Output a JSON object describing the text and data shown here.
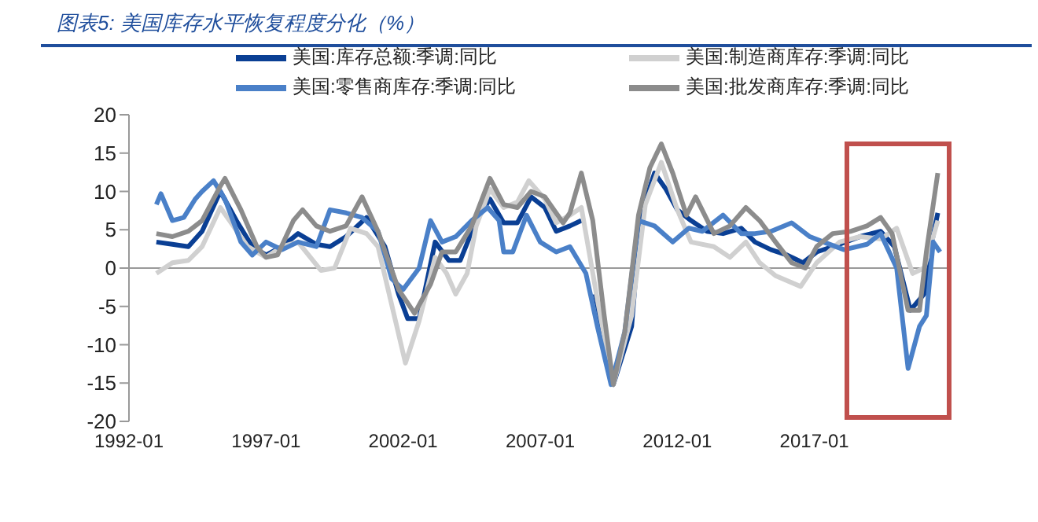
{
  "chart_data": {
    "type": "line",
    "title": "图表5:  美国库存水平恢复程度分化（%）",
    "xlim": [
      "1992-01",
      "2022-01"
    ],
    "xticks": [
      "1992-01",
      "1997-01",
      "2002-01",
      "2007-01",
      "2012-01",
      "2017-01"
    ],
    "ylim": [
      -20,
      20
    ],
    "yticks": [
      -20,
      -15,
      -10,
      -5,
      0,
      5,
      10,
      15,
      20
    ],
    "grid": false,
    "ref_lines": [
      {
        "axis": "y",
        "value": 0,
        "color": "#999999"
      }
    ],
    "legend": "top",
    "marker": "none",
    "line_style": "solid",
    "series": [
      {
        "name": "美国:库存总额:季调:同比",
        "color": "#0a3f94",
        "x": [
          "1993-01",
          "1993-08",
          "1994-03",
          "1994-09",
          "1995-05",
          "1995-12",
          "1996-07",
          "1997-01",
          "1997-08",
          "1998-03",
          "1998-11",
          "1999-05",
          "1999-12",
          "2000-09",
          "2001-05",
          "2001-11",
          "2002-03",
          "2002-08",
          "2003-03",
          "2003-09",
          "2004-02",
          "2004-09",
          "2005-03",
          "2005-09",
          "2006-03",
          "2006-09",
          "2007-03",
          "2007-08",
          "2008-02",
          "2008-07",
          "2008-09",
          "2009-01",
          "2009-09",
          "2010-05",
          "2010-09",
          "2011-03",
          "2011-08",
          "2012-01",
          "2012-07",
          "2013-02",
          "2013-09",
          "2014-05",
          "2014-11",
          "2015-06",
          "2016-01",
          "2016-08",
          "2017-02",
          "2017-12",
          "2018-09",
          "2019-06",
          "2019-12",
          "2020-07",
          "2021-01",
          "2021-03",
          "2021-07"
        ],
        "values": [
          3.4,
          3.1,
          2.8,
          4.8,
          10.0,
          6.2,
          2.8,
          1.7,
          2.8,
          4.5,
          3.1,
          2.8,
          4.1,
          6.6,
          2.8,
          -3.4,
          -6.6,
          -6.6,
          3.4,
          1.0,
          1.0,
          6.2,
          9.0,
          5.9,
          5.9,
          9.3,
          7.9,
          4.8,
          5.5,
          6.2,
          null,
          -3.4,
          -15.2,
          -7.6,
          6.9,
          12.4,
          10.3,
          7.6,
          6.2,
          4.8,
          4.5,
          5.2,
          3.4,
          2.4,
          1.7,
          0.7,
          2.1,
          3.1,
          4.1,
          4.8,
          2.8,
          -5.5,
          -3.4,
          1.4,
          7.2
        ]
      },
      {
        "name": "美国:制造商库存:季调:同比",
        "color": "#d0d0d0",
        "x": [
          "1993-01",
          "1993-08",
          "1994-03",
          "1994-09",
          "1995-05",
          "1995-09",
          "1996-05",
          "1997-01",
          "1997-08",
          "1998-03",
          "1999-01",
          "1999-07",
          "2000-02",
          "2000-09",
          "2001-02",
          "2001-08",
          "2002-02",
          "2002-08",
          "2003-03",
          "2003-08",
          "2003-12",
          "2004-05",
          "2004-09",
          "2005-03",
          "2005-09",
          "2006-03",
          "2006-08",
          "2007-03",
          "2007-08",
          "2008-02",
          "2008-07",
          "2009-02",
          "2009-09",
          "2010-05",
          "2010-11",
          "2011-06",
          "2012-01",
          "2012-07",
          "2013-05",
          "2013-12",
          "2014-07",
          "2015-01",
          "2015-08",
          "2016-07",
          "2017-02",
          "2017-12",
          "2018-09",
          "2019-06",
          "2020-01",
          "2020-08",
          "2021-01",
          "2021-07"
        ],
        "values": [
          -0.7,
          0.7,
          1.0,
          2.8,
          7.9,
          6.2,
          2.8,
          1.4,
          2.8,
          3.4,
          -0.3,
          0,
          5.2,
          4.5,
          2.8,
          -4.8,
          -12.4,
          -6.9,
          1.4,
          -0.7,
          -3.4,
          -0.7,
          5.5,
          10.3,
          7.9,
          8.6,
          11.4,
          9.0,
          5.9,
          6.9,
          7.9,
          -4.1,
          -15.2,
          -6.2,
          8.3,
          13.8,
          7.6,
          3.4,
          2.8,
          1.4,
          3.4,
          0.7,
          -1.0,
          -2.4,
          0.7,
          3.4,
          4.1,
          3.8,
          5.2,
          -0.7,
          0,
          6.2
        ]
      },
      {
        "name": "美国:零售商库存:季调:同比",
        "color": "#4a80c8",
        "x": [
          "1993-01",
          "1993-03",
          "1993-08",
          "1994-01",
          "1994-06",
          "1994-09",
          "1995-02",
          "1995-07",
          "1996-02",
          "1996-07",
          "1997-01",
          "1997-08",
          "1998-03",
          "1998-11",
          "1999-05",
          "1999-12",
          "2000-07",
          "2001-02",
          "2001-08",
          "2002-01",
          "2002-08",
          "2003-01",
          "2003-06",
          "2003-12",
          "2004-07",
          "2005-02",
          "2005-07",
          "2005-09",
          "2006-01",
          "2006-07",
          "2007-01",
          "2007-08",
          "2008-02",
          "2008-09",
          "2009-02",
          "2009-08",
          "2010-02",
          "2010-08",
          "2011-03",
          "2011-11",
          "2012-06",
          "2012-12",
          "2013-09",
          "2014-05",
          "2014-11",
          "2015-06",
          "2016-03",
          "2016-11",
          "2017-05",
          "2018-02",
          "2018-12",
          "2019-06",
          "2020-01",
          "2020-06",
          "2020-11",
          "2021-02",
          "2021-05",
          "2021-08"
        ],
        "values": [
          8.3,
          9.7,
          6.2,
          6.6,
          9.0,
          10.0,
          11.4,
          9.0,
          3.4,
          1.7,
          3.4,
          2.4,
          3.4,
          2.8,
          7.6,
          7.2,
          6.6,
          4.8,
          -1.4,
          -2.8,
          0,
          6.2,
          3.4,
          4.1,
          6.2,
          7.9,
          6.2,
          2.1,
          2.1,
          6.9,
          3.4,
          2.1,
          2.8,
          -0.7,
          -7.6,
          -15.2,
          -8.3,
          6.2,
          5.5,
          3.4,
          5.2,
          4.8,
          6.9,
          4.5,
          4.5,
          4.8,
          5.9,
          4.1,
          3.4,
          2.4,
          3.1,
          4.5,
          0,
          -13.1,
          -7.6,
          -6.2,
          3.4,
          2.1
        ]
      },
      {
        "name": "美国:批发商库存:季调:同比",
        "color": "#8c8c8c",
        "x": [
          "1993-01",
          "1993-08",
          "1994-03",
          "1994-09",
          "1995-05",
          "1995-07",
          "1996-02",
          "1996-09",
          "1997-01",
          "1997-06",
          "1998-01",
          "1998-05",
          "1998-11",
          "1999-05",
          "1999-12",
          "2000-07",
          "2001-02",
          "2001-11",
          "2002-06",
          "2003-01",
          "2003-06",
          "2003-12",
          "2004-07",
          "2005-03",
          "2005-09",
          "2006-03",
          "2006-09",
          "2007-03",
          "2007-11",
          "2008-02",
          "2008-07",
          "2008-12",
          "2009-05",
          "2009-09",
          "2010-02",
          "2010-08",
          "2011-01",
          "2011-06",
          "2011-11",
          "2012-05",
          "2012-09",
          "2013-05",
          "2013-12",
          "2014-07",
          "2015-01",
          "2015-08",
          "2016-03",
          "2016-09",
          "2017-02",
          "2017-09",
          "2018-05",
          "2018-12",
          "2019-06",
          "2019-11",
          "2020-06",
          "2020-11",
          "2021-02",
          "2021-07"
        ],
        "values": [
          4.5,
          4.1,
          4.8,
          6.2,
          10.7,
          11.7,
          7.6,
          2.8,
          1.4,
          1.7,
          6.2,
          7.6,
          5.5,
          4.8,
          5.5,
          9.3,
          4.8,
          -2.8,
          -5.9,
          -2.1,
          2.1,
          2.1,
          5.5,
          11.7,
          8.3,
          7.9,
          10.0,
          9.3,
          5.9,
          7.2,
          12.4,
          6.2,
          -6.2,
          -15.2,
          -8.3,
          6.9,
          13.1,
          16.2,
          12.4,
          6.9,
          9.3,
          4.5,
          5.5,
          7.9,
          6.2,
          3.4,
          0.7,
          0,
          2.8,
          4.5,
          4.8,
          5.5,
          6.6,
          4.5,
          -5.5,
          -5.5,
          2.1,
          12.4
        ]
      }
    ]
  }
}
